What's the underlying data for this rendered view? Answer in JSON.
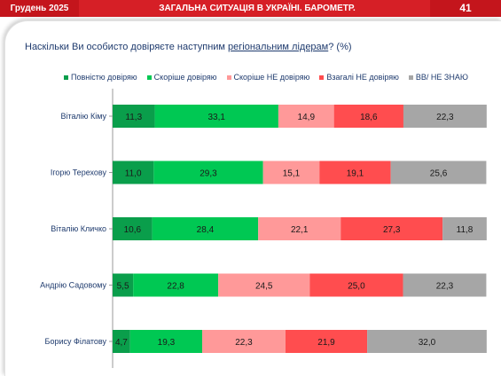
{
  "header": {
    "date": "Грудень 2025",
    "title": "ЗАГАЛЬНА СИТУАЦІЯ В УКРАЇНІ. БАРОМЕТР.",
    "page": "41"
  },
  "question": {
    "before": "Наскільки Ви особисто довіряєте наступним ",
    "highlight": "регіональним лідерам",
    "after": "? (%)"
  },
  "colors": {
    "full_trust": "#0a9e4b",
    "rather_trust": "#00c853",
    "rather_not": "#ff9999",
    "not_at_all": "#ff4d4f",
    "dont_know": "#a6a6a6"
  },
  "chart_data": {
    "type": "bar",
    "orientation": "horizontal-stacked-100",
    "categories": [
      "Віталію Кіму",
      "Ігорю Терехову",
      "Віталію Кличко",
      "Андрію Садовому",
      "Борису Філатову"
    ],
    "series": [
      {
        "name": "Повністю довіряю",
        "color_key": "full_trust",
        "values": [
          11.3,
          11.0,
          10.6,
          5.5,
          4.7
        ]
      },
      {
        "name": "Скоріше довіряю",
        "color_key": "rather_trust",
        "values": [
          33.1,
          29.3,
          28.4,
          22.8,
          19.3
        ]
      },
      {
        "name": "Скоріше НЕ довіряю",
        "color_key": "rather_not",
        "values": [
          14.9,
          15.1,
          22.1,
          24.5,
          22.3
        ]
      },
      {
        "name": "Взагалі НЕ  довіряю",
        "color_key": "not_at_all",
        "values": [
          18.6,
          19.1,
          27.3,
          25.0,
          21.9
        ]
      },
      {
        "name": "ВВ/ НЕ ЗНАЮ",
        "color_key": "dont_know",
        "values": [
          22.3,
          25.6,
          11.8,
          22.3,
          32.0
        ]
      }
    ],
    "xlim": [
      0,
      100
    ],
    "legend": "top",
    "grid": false,
    "data_labels": true
  }
}
